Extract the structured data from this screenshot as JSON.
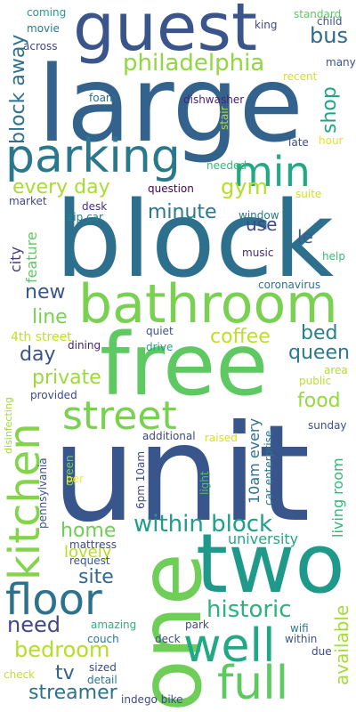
{
  "wordcloud": {
    "words": [
      {
        "text": "guest",
        "color": "#3a548c"
      },
      {
        "text": "large",
        "color": "#33638d"
      },
      {
        "text": "block",
        "color": "#2d708e"
      },
      {
        "text": "unit",
        "color": "#39568c"
      },
      {
        "text": "free",
        "color": "#5ec962"
      },
      {
        "text": "two",
        "color": "#1f9a8a"
      },
      {
        "text": "one",
        "color": "#6ece58"
      },
      {
        "text": "bathroom",
        "color": "#7ad151"
      },
      {
        "text": "parking",
        "color": "#2a788e"
      },
      {
        "text": "min",
        "color": "#22a884"
      },
      {
        "text": "kitchen",
        "color": "#84d44b"
      },
      {
        "text": "street",
        "color": "#7ad151"
      },
      {
        "text": "floor",
        "color": "#2c728e"
      },
      {
        "text": "well",
        "color": "#22a884"
      },
      {
        "text": "full",
        "color": "#5ec962"
      },
      {
        "text": "philadelphia",
        "color": "#90d743"
      },
      {
        "text": "block away",
        "color": "#2d708e"
      },
      {
        "text": "every day",
        "color": "#a8db34"
      },
      {
        "text": "within block",
        "color": "#1f9e89"
      },
      {
        "text": "historic",
        "color": "#2db27d"
      },
      {
        "text": "bus",
        "color": "#31688e"
      },
      {
        "text": "shop",
        "color": "#20a486"
      },
      {
        "text": "gym",
        "color": "#b5de2b"
      },
      {
        "text": "minute",
        "color": "#2a788e"
      },
      {
        "text": "coffee",
        "color": "#bddf26"
      },
      {
        "text": "line",
        "color": "#7ad151"
      },
      {
        "text": "new",
        "color": "#39568c"
      },
      {
        "text": "private",
        "color": "#9bd93c"
      },
      {
        "text": "bedroom",
        "color": "#b5de2b"
      },
      {
        "text": "need",
        "color": "#3e4989"
      },
      {
        "text": "home",
        "color": "#6ece58"
      },
      {
        "text": "site",
        "color": "#31688e"
      },
      {
        "text": "available",
        "color": "#a5db36"
      },
      {
        "text": "streamer",
        "color": "#2c728e"
      },
      {
        "text": "tv",
        "color": "#355f8d"
      },
      {
        "text": "food",
        "color": "#95d840"
      },
      {
        "text": "bed",
        "color": "#27808e"
      },
      {
        "text": "queen",
        "color": "#297a8e"
      },
      {
        "text": "day",
        "color": "#3b528b"
      },
      {
        "text": "use",
        "color": "#3f4788"
      },
      {
        "text": "le",
        "color": "#365c8d"
      },
      {
        "text": "lovely",
        "color": "#b8de29"
      },
      {
        "text": "university",
        "color": "#22a785"
      },
      {
        "text": "living room",
        "color": "#35b779"
      },
      {
        "text": "4th street",
        "color": "#c2df23"
      },
      {
        "text": "10am every",
        "color": "#2d718e"
      },
      {
        "text": "city",
        "color": "#453882"
      },
      {
        "text": "feature",
        "color": "#5ec962"
      },
      {
        "text": "coming",
        "color": "#1fa088"
      },
      {
        "text": "movie",
        "color": "#2a788e"
      },
      {
        "text": "across",
        "color": "#3e4a89"
      },
      {
        "text": "king",
        "color": "#3f4788"
      },
      {
        "text": "standard",
        "color": "#5ec962"
      },
      {
        "text": "child",
        "color": "#39558c"
      },
      {
        "text": "many",
        "color": "#3b518b"
      },
      {
        "text": "foam",
        "color": "#2d708e"
      },
      {
        "text": "dishwasher",
        "color": "#482374"
      },
      {
        "text": "recent",
        "color": "#d8e219"
      },
      {
        "text": "stair",
        "color": "#b5de2b"
      },
      {
        "text": "hour",
        "color": "#e2e418"
      },
      {
        "text": "late",
        "color": "#3e4989"
      },
      {
        "text": "needed",
        "color": "#35b779"
      },
      {
        "text": "question",
        "color": "#440154"
      },
      {
        "text": "suite",
        "color": "#d0e11c"
      },
      {
        "text": "desk",
        "color": "#472f7d"
      },
      {
        "text": "zip car",
        "color": "#26828e"
      },
      {
        "text": "window",
        "color": "#2a788e"
      },
      {
        "text": "market",
        "color": "#3e4989"
      },
      {
        "text": "music",
        "color": "#482878"
      },
      {
        "text": "help",
        "color": "#3aba76"
      },
      {
        "text": "coronavirus",
        "color": "#2c728e"
      },
      {
        "text": "quiet",
        "color": "#3b528b"
      },
      {
        "text": "drive",
        "color": "#20a386"
      },
      {
        "text": "dining",
        "color": "#482475"
      },
      {
        "text": "area",
        "color": "#b2dd2d"
      },
      {
        "text": "public",
        "color": "#bddf26"
      },
      {
        "text": "provided",
        "color": "#3e4989"
      },
      {
        "text": "sunday",
        "color": "#3e4c8a"
      },
      {
        "text": "additional",
        "color": "#3f4788"
      },
      {
        "text": "raised",
        "color": "#d8e219"
      },
      {
        "text": "disinfecting",
        "color": "#a0da39"
      },
      {
        "text": "green",
        "color": "#7ad151"
      },
      {
        "text": "pennsylvania",
        "color": "#3b528b"
      },
      {
        "text": "per",
        "color": "#fde725"
      },
      {
        "text": "6pm 10am",
        "color": "#3e4989"
      },
      {
        "text": "light",
        "color": "#4ac16d"
      },
      {
        "text": "car enterprise",
        "color": "#2a788e"
      },
      {
        "text": "mattress",
        "color": "#3e4989"
      },
      {
        "text": "request",
        "color": "#3b528b"
      },
      {
        "text": "amazing",
        "color": "#2db27d"
      },
      {
        "text": "couch",
        "color": "#2a788e"
      },
      {
        "text": "deck",
        "color": "#3e4989"
      },
      {
        "text": "park",
        "color": "#3e4989"
      },
      {
        "text": "wifi",
        "color": "#2a788e"
      },
      {
        "text": "within",
        "color": "#3b528b"
      },
      {
        "text": "due",
        "color": "#3e4989"
      },
      {
        "text": "sized",
        "color": "#3e4989"
      },
      {
        "text": "detail",
        "color": "#2a788e"
      },
      {
        "text": "check",
        "color": "#c2df23"
      },
      {
        "text": "indego bike",
        "color": "#3e4989"
      }
    ]
  }
}
